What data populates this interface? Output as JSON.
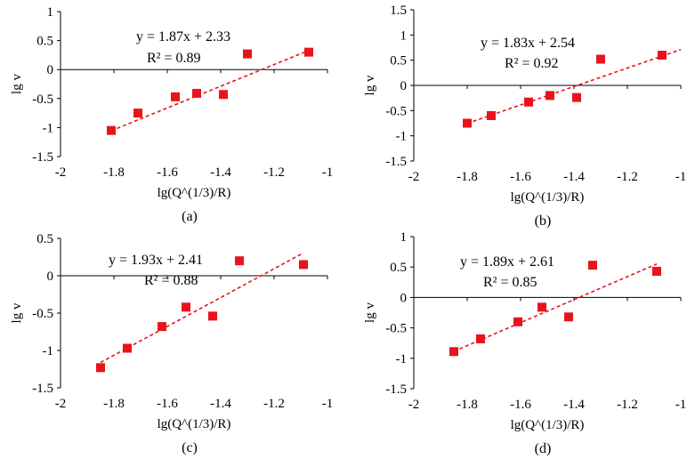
{
  "colors": {
    "marker": "#e8141b",
    "trendline": "#e8141b",
    "axis": "#000000",
    "background": "#ffffff"
  },
  "chart_data": [
    {
      "type": "scatter",
      "panel_label": "(a)",
      "xlabel": "lg(Q^(1/3)/R)",
      "ylabel": "lg v",
      "xlim": [
        -2,
        -1
      ],
      "ylim": [
        -1.5,
        1
      ],
      "x_ticks": [
        -2,
        -1.8,
        -1.6,
        -1.4,
        -1.2,
        -1
      ],
      "x_tick_labels": [
        "-2",
        "-1.8",
        "-1.6",
        "-1.4",
        "-1.2",
        "-1"
      ],
      "y_ticks": [
        -1.5,
        -1,
        -0.5,
        0,
        0.5,
        1
      ],
      "y_tick_labels": [
        "-1.5",
        "-1",
        "-0.5",
        "0",
        "0.5",
        "1"
      ],
      "series": [
        {
          "name": "data",
          "x": [
            -1.81,
            -1.71,
            -1.57,
            -1.49,
            -1.39,
            -1.3,
            -1.07
          ],
          "y": [
            -1.05,
            -0.75,
            -0.47,
            -0.41,
            -0.43,
            0.27,
            0.3
          ]
        }
      ],
      "trendline": {
        "slope": 1.87,
        "intercept": 2.33,
        "x_range": [
          -1.81,
          -1.07
        ]
      },
      "equation": "y = 1.87x + 2.33",
      "r_squared": "R² = 0.89"
    },
    {
      "type": "scatter",
      "panel_label": "(b)",
      "xlabel": "lg(Q^(1/3)/R)",
      "ylabel": "lg v",
      "xlim": [
        -2,
        -1
      ],
      "ylim": [
        -1.5,
        1.5
      ],
      "x_ticks": [
        -2,
        -1.8,
        -1.6,
        -1.4,
        -1.2,
        -1
      ],
      "x_tick_labels": [
        "-2",
        "-1.8",
        "-1.6",
        "-1.4",
        "-1.2",
        "-1"
      ],
      "y_ticks": [
        -1.5,
        -1,
        -0.5,
        0,
        0.5,
        1,
        1.5
      ],
      "y_tick_labels": [
        "-1.5",
        "-1",
        "-0.5",
        "0",
        "0.5",
        "1",
        "1.5"
      ],
      "series": [
        {
          "name": "data",
          "x": [
            -1.8,
            -1.71,
            -1.57,
            -1.49,
            -1.39,
            -1.3,
            -1.07
          ],
          "y": [
            -0.75,
            -0.6,
            -0.33,
            -0.2,
            -0.24,
            0.52,
            0.6
          ]
        }
      ],
      "trendline": {
        "slope": 1.83,
        "intercept": 2.54,
        "x_range": [
          -1.8,
          -1.0
        ]
      },
      "equation": "y = 1.83x + 2.54",
      "r_squared": "R² = 0.92"
    },
    {
      "type": "scatter",
      "panel_label": "(c)",
      "xlabel": "lg(Q^(1/3)/R)",
      "ylabel": "lg v",
      "xlim": [
        -2,
        -1
      ],
      "ylim": [
        -1.5,
        0.5
      ],
      "x_ticks": [
        -2,
        -1.8,
        -1.6,
        -1.4,
        -1.2,
        -1
      ],
      "x_tick_labels": [
        "-2",
        "-1.8",
        "-1.6",
        "-1.4",
        "-1.2",
        "-1"
      ],
      "y_ticks": [
        -1.5,
        -1,
        -0.5,
        0,
        0.5
      ],
      "y_tick_labels": [
        "-1.5",
        "-1",
        "-0.5",
        "0",
        "0.5"
      ],
      "series": [
        {
          "name": "data",
          "x": [
            -1.85,
            -1.75,
            -1.62,
            -1.53,
            -1.43,
            -1.33,
            -1.09
          ],
          "y": [
            -1.23,
            -0.97,
            -0.68,
            -0.42,
            -0.54,
            0.2,
            0.15
          ]
        }
      ],
      "trendline": {
        "slope": 1.93,
        "intercept": 2.41,
        "x_range": [
          -1.85,
          -1.09
        ]
      },
      "equation": "y = 1.93x + 2.41",
      "r_squared": "R² = 0.88"
    },
    {
      "type": "scatter",
      "panel_label": "(d)",
      "xlabel": "lg(Q^(1/3)/R)",
      "ylabel": "lg v",
      "xlim": [
        -2,
        -1
      ],
      "ylim": [
        -1.5,
        1
      ],
      "x_ticks": [
        -2,
        -1.8,
        -1.6,
        -1.4,
        -1.2,
        -1
      ],
      "x_tick_labels": [
        "-2",
        "-1.8",
        "-1.6",
        "-1.4",
        "-1.2",
        "-1"
      ],
      "y_ticks": [
        -1.5,
        -1,
        -0.5,
        0,
        0.5,
        1
      ],
      "y_tick_labels": [
        "-1.5",
        "-1",
        "-0.5",
        "0",
        "0.5",
        "1"
      ],
      "series": [
        {
          "name": "data",
          "x": [
            -1.85,
            -1.75,
            -1.61,
            -1.52,
            -1.42,
            -1.33,
            -1.09
          ],
          "y": [
            -0.89,
            -0.68,
            -0.4,
            -0.16,
            -0.32,
            0.53,
            0.43
          ]
        }
      ],
      "trendline": {
        "slope": 1.89,
        "intercept": 2.61,
        "x_range": [
          -1.85,
          -1.09
        ]
      },
      "equation": "y = 1.89x + 2.61",
      "r_squared": "R² = 0.85"
    }
  ]
}
